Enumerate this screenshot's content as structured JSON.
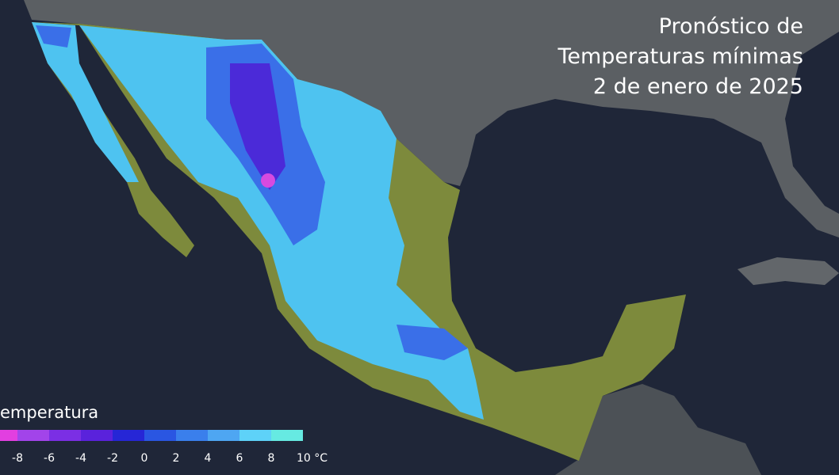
{
  "header": {
    "title": [
      "Pronóstico de",
      "Temperaturas mínimas",
      "2 de enero de 2025"
    ]
  },
  "legend": {
    "title": "emperatura",
    "colors": [
      "#e23fe0",
      "#a244ea",
      "#7b2fe4",
      "#5a22dc",
      "#2626d6",
      "#2a56e2",
      "#3a7fec",
      "#4ea6f2",
      "#5ed2f8",
      "#66eae2"
    ],
    "ticks": [
      -8,
      -6,
      -4,
      -2,
      0,
      2,
      4,
      6,
      8,
      {
        "value": 10,
        "label": "10 °C"
      }
    ]
  }
}
